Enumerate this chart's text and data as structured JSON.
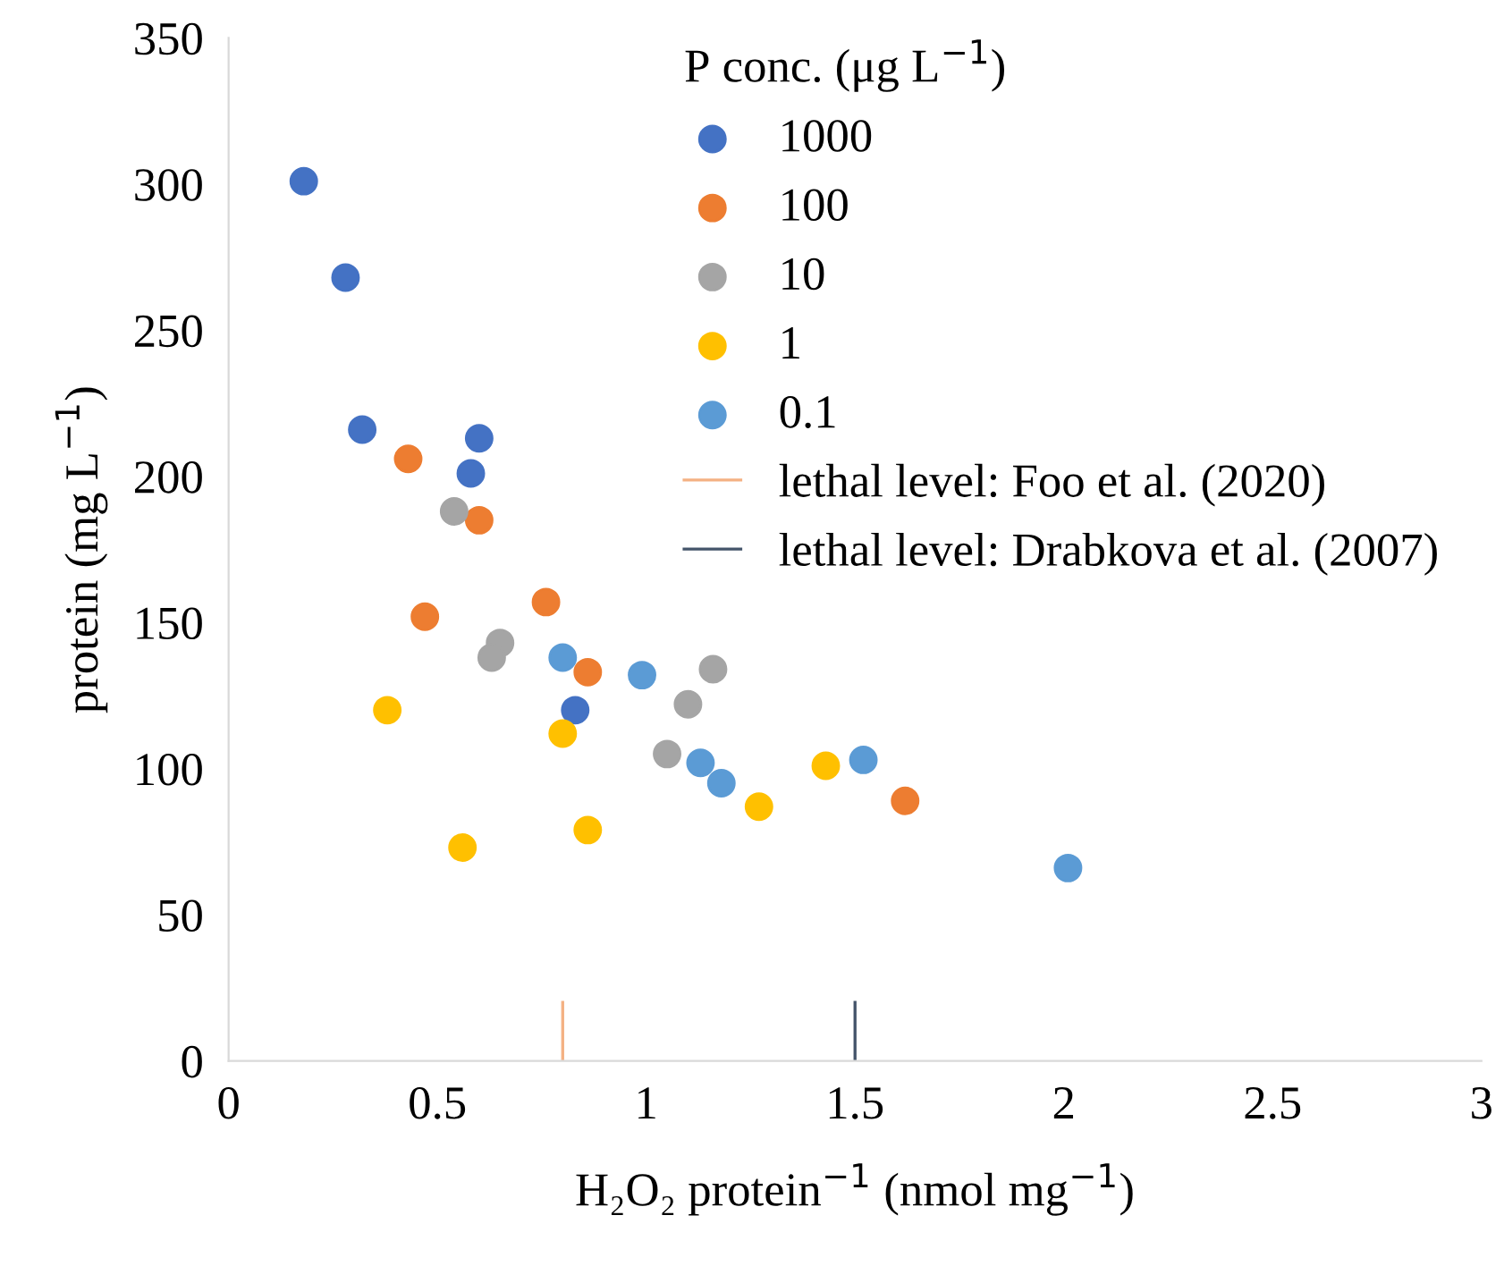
{
  "chart_data": {
    "type": "scatter",
    "xlabel": "H₂O₂ protein$^{−1}$ (nmol mg$^{−1}$)",
    "ylabel": "protein (mg L$^{−1}$)",
    "legend_title": "P conc. (μg L$^{−1}$)",
    "xlim": [
      0,
      3
    ],
    "xticks": [
      0,
      0.5,
      1,
      1.5,
      2,
      2.5,
      3
    ],
    "ylim": [
      0,
      350
    ],
    "yticks": [
      0,
      50,
      100,
      150,
      200,
      250,
      300,
      350
    ],
    "grid": false,
    "legend": "top right",
    "marker": "circle",
    "series": [
      {
        "name": "1000",
        "color": "#4472c4",
        "x": [
          0.18,
          0.28,
          0.32,
          0.58,
          0.6,
          0.83
        ],
        "values": [
          301,
          268,
          216,
          201,
          213,
          120
        ]
      },
      {
        "name": "100",
        "color": "#ed7d31",
        "x": [
          0.43,
          0.6,
          0.47,
          0.76,
          0.86,
          1.62
        ],
        "values": [
          206,
          185,
          152,
          157,
          133,
          89
        ]
      },
      {
        "name": "10",
        "color": "#a5a5a5",
        "x": [
          0.54,
          0.65,
          0.63,
          1.1,
          1.16,
          1.05
        ],
        "values": [
          188,
          143,
          138,
          122,
          134,
          105
        ]
      },
      {
        "name": "1",
        "color": "#ffc000",
        "x": [
          0.38,
          0.56,
          0.8,
          0.86,
          1.27,
          1.43
        ],
        "values": [
          120,
          73,
          112,
          79,
          87,
          101
        ]
      },
      {
        "name": "0.1",
        "color": "#5b9bd5",
        "x": [
          0.8,
          0.99,
          1.13,
          1.18,
          1.52,
          2.01
        ],
        "values": [
          138,
          132,
          102,
          95,
          103,
          66
        ]
      },
      {
        "name": "lethal level: Foo et al. (2020)",
        "type": "line",
        "marker": "none",
        "color": "#f4b183",
        "x": [
          0.8,
          0.8
        ],
        "values": [
          0,
          20
        ]
      },
      {
        "name": "lethal level: Drabkova et al. (2007)",
        "type": "line",
        "marker": "none",
        "color": "#44546a",
        "x": [
          1.5,
          1.5
        ],
        "values": [
          0,
          20
        ]
      }
    ]
  }
}
